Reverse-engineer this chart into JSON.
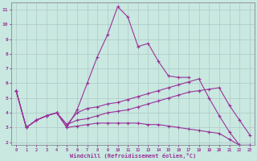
{
  "xlabel": "Windchill (Refroidissement éolien,°C)",
  "bg_color": "#c8e8e0",
  "grid_color": "#b0c8c8",
  "line_color": "#993399",
  "xmin": 0,
  "xmax": 23,
  "ymin": 2,
  "ymax": 11,
  "yticks": [
    2,
    3,
    4,
    5,
    6,
    7,
    8,
    9,
    10,
    11
  ],
  "xticks": [
    0,
    1,
    2,
    3,
    4,
    5,
    6,
    7,
    8,
    9,
    10,
    11,
    12,
    13,
    14,
    15,
    16,
    17,
    18,
    19,
    20,
    21,
    22,
    23
  ],
  "series": [
    {
      "x": [
        0,
        1,
        2,
        3,
        4,
        5,
        6,
        7,
        8,
        9,
        10,
        11,
        12,
        13,
        14,
        15,
        16,
        17
      ],
      "y": [
        5.5,
        3.0,
        3.5,
        3.8,
        4.0,
        3.0,
        4.2,
        6.0,
        7.8,
        9.3,
        11.2,
        10.5,
        8.5,
        8.7,
        7.5,
        6.5,
        6.4,
        6.4
      ]
    },
    {
      "x": [
        0,
        1,
        2,
        3,
        4,
        5,
        6,
        7,
        8,
        9,
        10,
        11,
        12,
        13,
        14,
        15,
        16,
        17,
        18,
        19,
        20,
        21,
        22,
        23
      ],
      "y": [
        5.5,
        3.0,
        3.5,
        3.8,
        4.0,
        3.2,
        4.0,
        4.3,
        4.4,
        4.6,
        4.7,
        4.9,
        5.1,
        5.3,
        5.5,
        5.7,
        5.9,
        6.1,
        6.3,
        5.0,
        3.8,
        2.7,
        1.8,
        1.8
      ]
    },
    {
      "x": [
        0,
        1,
        2,
        3,
        4,
        5,
        6,
        7,
        8,
        9,
        10,
        11,
        12,
        13,
        14,
        15,
        16,
        17,
        18,
        19,
        20,
        21,
        22,
        23
      ],
      "y": [
        5.5,
        3.0,
        3.5,
        3.8,
        4.0,
        3.2,
        3.5,
        3.6,
        3.8,
        4.0,
        4.1,
        4.2,
        4.4,
        4.6,
        4.8,
        5.0,
        5.2,
        5.4,
        5.5,
        5.6,
        5.7,
        4.5,
        3.5,
        2.5
      ]
    },
    {
      "x": [
        0,
        1,
        2,
        3,
        4,
        5,
        6,
        7,
        8,
        9,
        10,
        11,
        12,
        13,
        14,
        15,
        16,
        17,
        18,
        19,
        20,
        21,
        22,
        23
      ],
      "y": [
        5.5,
        3.0,
        3.5,
        3.8,
        4.0,
        3.0,
        3.1,
        3.2,
        3.3,
        3.3,
        3.3,
        3.3,
        3.3,
        3.2,
        3.2,
        3.1,
        3.0,
        2.9,
        2.8,
        2.7,
        2.6,
        2.2,
        1.8,
        1.5
      ]
    }
  ]
}
